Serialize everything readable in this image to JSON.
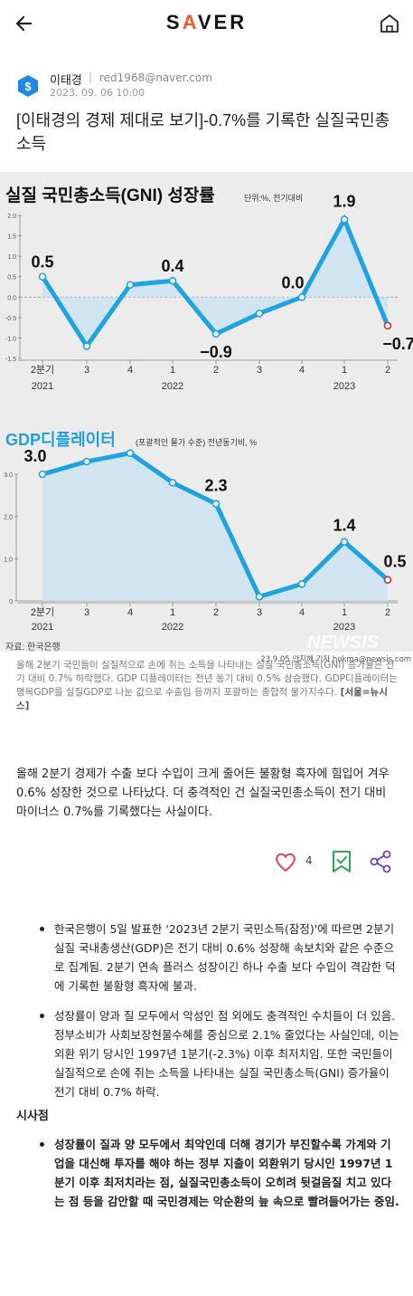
{
  "header": {
    "logo_prefix": "S",
    "logo_accent": "A",
    "logo_rest": "VER",
    "back_icon": "back-arrow-icon",
    "home_icon": "home-icon"
  },
  "author": {
    "name": "이태경",
    "separator": "|",
    "email": "red1968@naver.com",
    "date": "2023. 09. 06 10:00"
  },
  "article": {
    "title": "[이태경의 경제 제대로 보기]-0.7%를 기록한 실질국민총소득",
    "caption": "올해 2분기 국민들이 실질적으로 손에 쥐는 소득을 나타내는 실질 국민총소득(GNI) 증가율은 전기 대비 0.7% 하락했다. GDP 디플레이터는 전년 동기 대비 0.5% 상승했다. GDP디플레이터는 명목GDP를 실질GDP로 나눈 값으로 수출입 등까지 포괄하는 종합적 물가지수다.",
    "caption_source": "[서울=뉴시스]",
    "lead": "올해 2분기 경제가 수출 보다 수입이 크게 줄어든 불황형 흑자에 힘입어 겨우 0.6% 성장한 것으로 나타났다. 더 충격적인 건 실질국민총소득이 전기 대비 마이너스 0.7%를 기록했다는 사실이다.",
    "like_count": "4",
    "bullets": [
      "한국은행이 5일 발표한 '2023년 2분기 국민소득(잠정)'에 따르면 2분기 실질 국내총생산(GDP)은 전기 대비 0.6% 성장해 속보치와 같은 수준으로 집계됨. 2분기 연속 플러스 성장이긴 하나 수출 보다 수입이 격감한 덕에 기록한 불황형 흑자에 불과.",
      "성장률이 양과 질 모두에서 악성인 점 외에도 충격적인 수치들이 더 있음. 정부소비가 사회보장현물수혜를 중심으로 2.1% 줄었다는 사실인데, 이는 외환 위기 당시인 1997년 1분기(-2.3%) 이후 최저치임. 또한 국민들이 실질적으로 손에 쥐는 소득을 나타내는 실질 국민총소득(GNI) 증가율이 전기 대비 0.7% 하락."
    ],
    "section_title": "시사점",
    "implications": [
      "성장률이 질과 양 모두에서 최악인데 더해 경기가 부진할수록 가계와 기업을 대신해 투자를 해야 하는 정부 지출이 외환위기 당시인 1997년 1분기 이후 최저치라는 점, 실질국민총소득이 오히려 뒷걸음질 치고 있다는 점 등을 감안할 때 국민경제는 악순환의 늪 속으로 빨려들어가는 중임."
    ]
  },
  "infographic": {
    "source": "자료: 한국은행",
    "credit": "23.9.05 안지혜 기자 hokma@newsis.com",
    "watermark": "NEWSIS"
  },
  "colors": {
    "accent": "#f05a28",
    "line": "#1fa3e0",
    "fill": "#cde3f3",
    "like": "#e2435a",
    "bookmark": "#2eaa55",
    "share": "#6b3fc9"
  },
  "chart_data": [
    {
      "type": "area",
      "title": "실질 국민총소득(GNI) 성장률",
      "subtitle": "단위:%, 전기대비",
      "categories": [
        "2분기",
        "3",
        "4",
        "1",
        "2",
        "3",
        "4",
        "1",
        "2"
      ],
      "year_labels": [
        "2021",
        "2022",
        "2023"
      ],
      "values": [
        0.5,
        -1.2,
        0.3,
        0.4,
        -0.9,
        -0.4,
        0.0,
        1.9,
        -0.7
      ],
      "labeled_values": [
        "0.5",
        "0.4",
        "−0.9",
        "0.0",
        "1.9",
        "−0.7"
      ],
      "yticks": [
        "2.0",
        "1.5",
        "1.0",
        "0.5",
        "0.0",
        "-0.5",
        "-1.0",
        "-1.5"
      ],
      "ylim": [
        -1.5,
        2.0
      ],
      "grid": false
    },
    {
      "type": "area",
      "title": "GDP디플레이터",
      "subtitle": "(포괄적인 물가 수준) 전년동기비, %",
      "categories": [
        "2분기",
        "3",
        "4",
        "1",
        "2",
        "3",
        "4",
        "1",
        "2"
      ],
      "year_labels": [
        "2021",
        "2022",
        "2023"
      ],
      "values": [
        3.0,
        3.3,
        3.5,
        2.8,
        2.3,
        0.1,
        0.4,
        1.4,
        0.5
      ],
      "labeled_values": [
        "3.0",
        "2.3",
        "1.4",
        "0.5"
      ],
      "yticks": [
        "3.0",
        "2.0",
        "1.0",
        "0"
      ],
      "ylim": [
        0,
        3.0
      ],
      "grid": false
    }
  ]
}
